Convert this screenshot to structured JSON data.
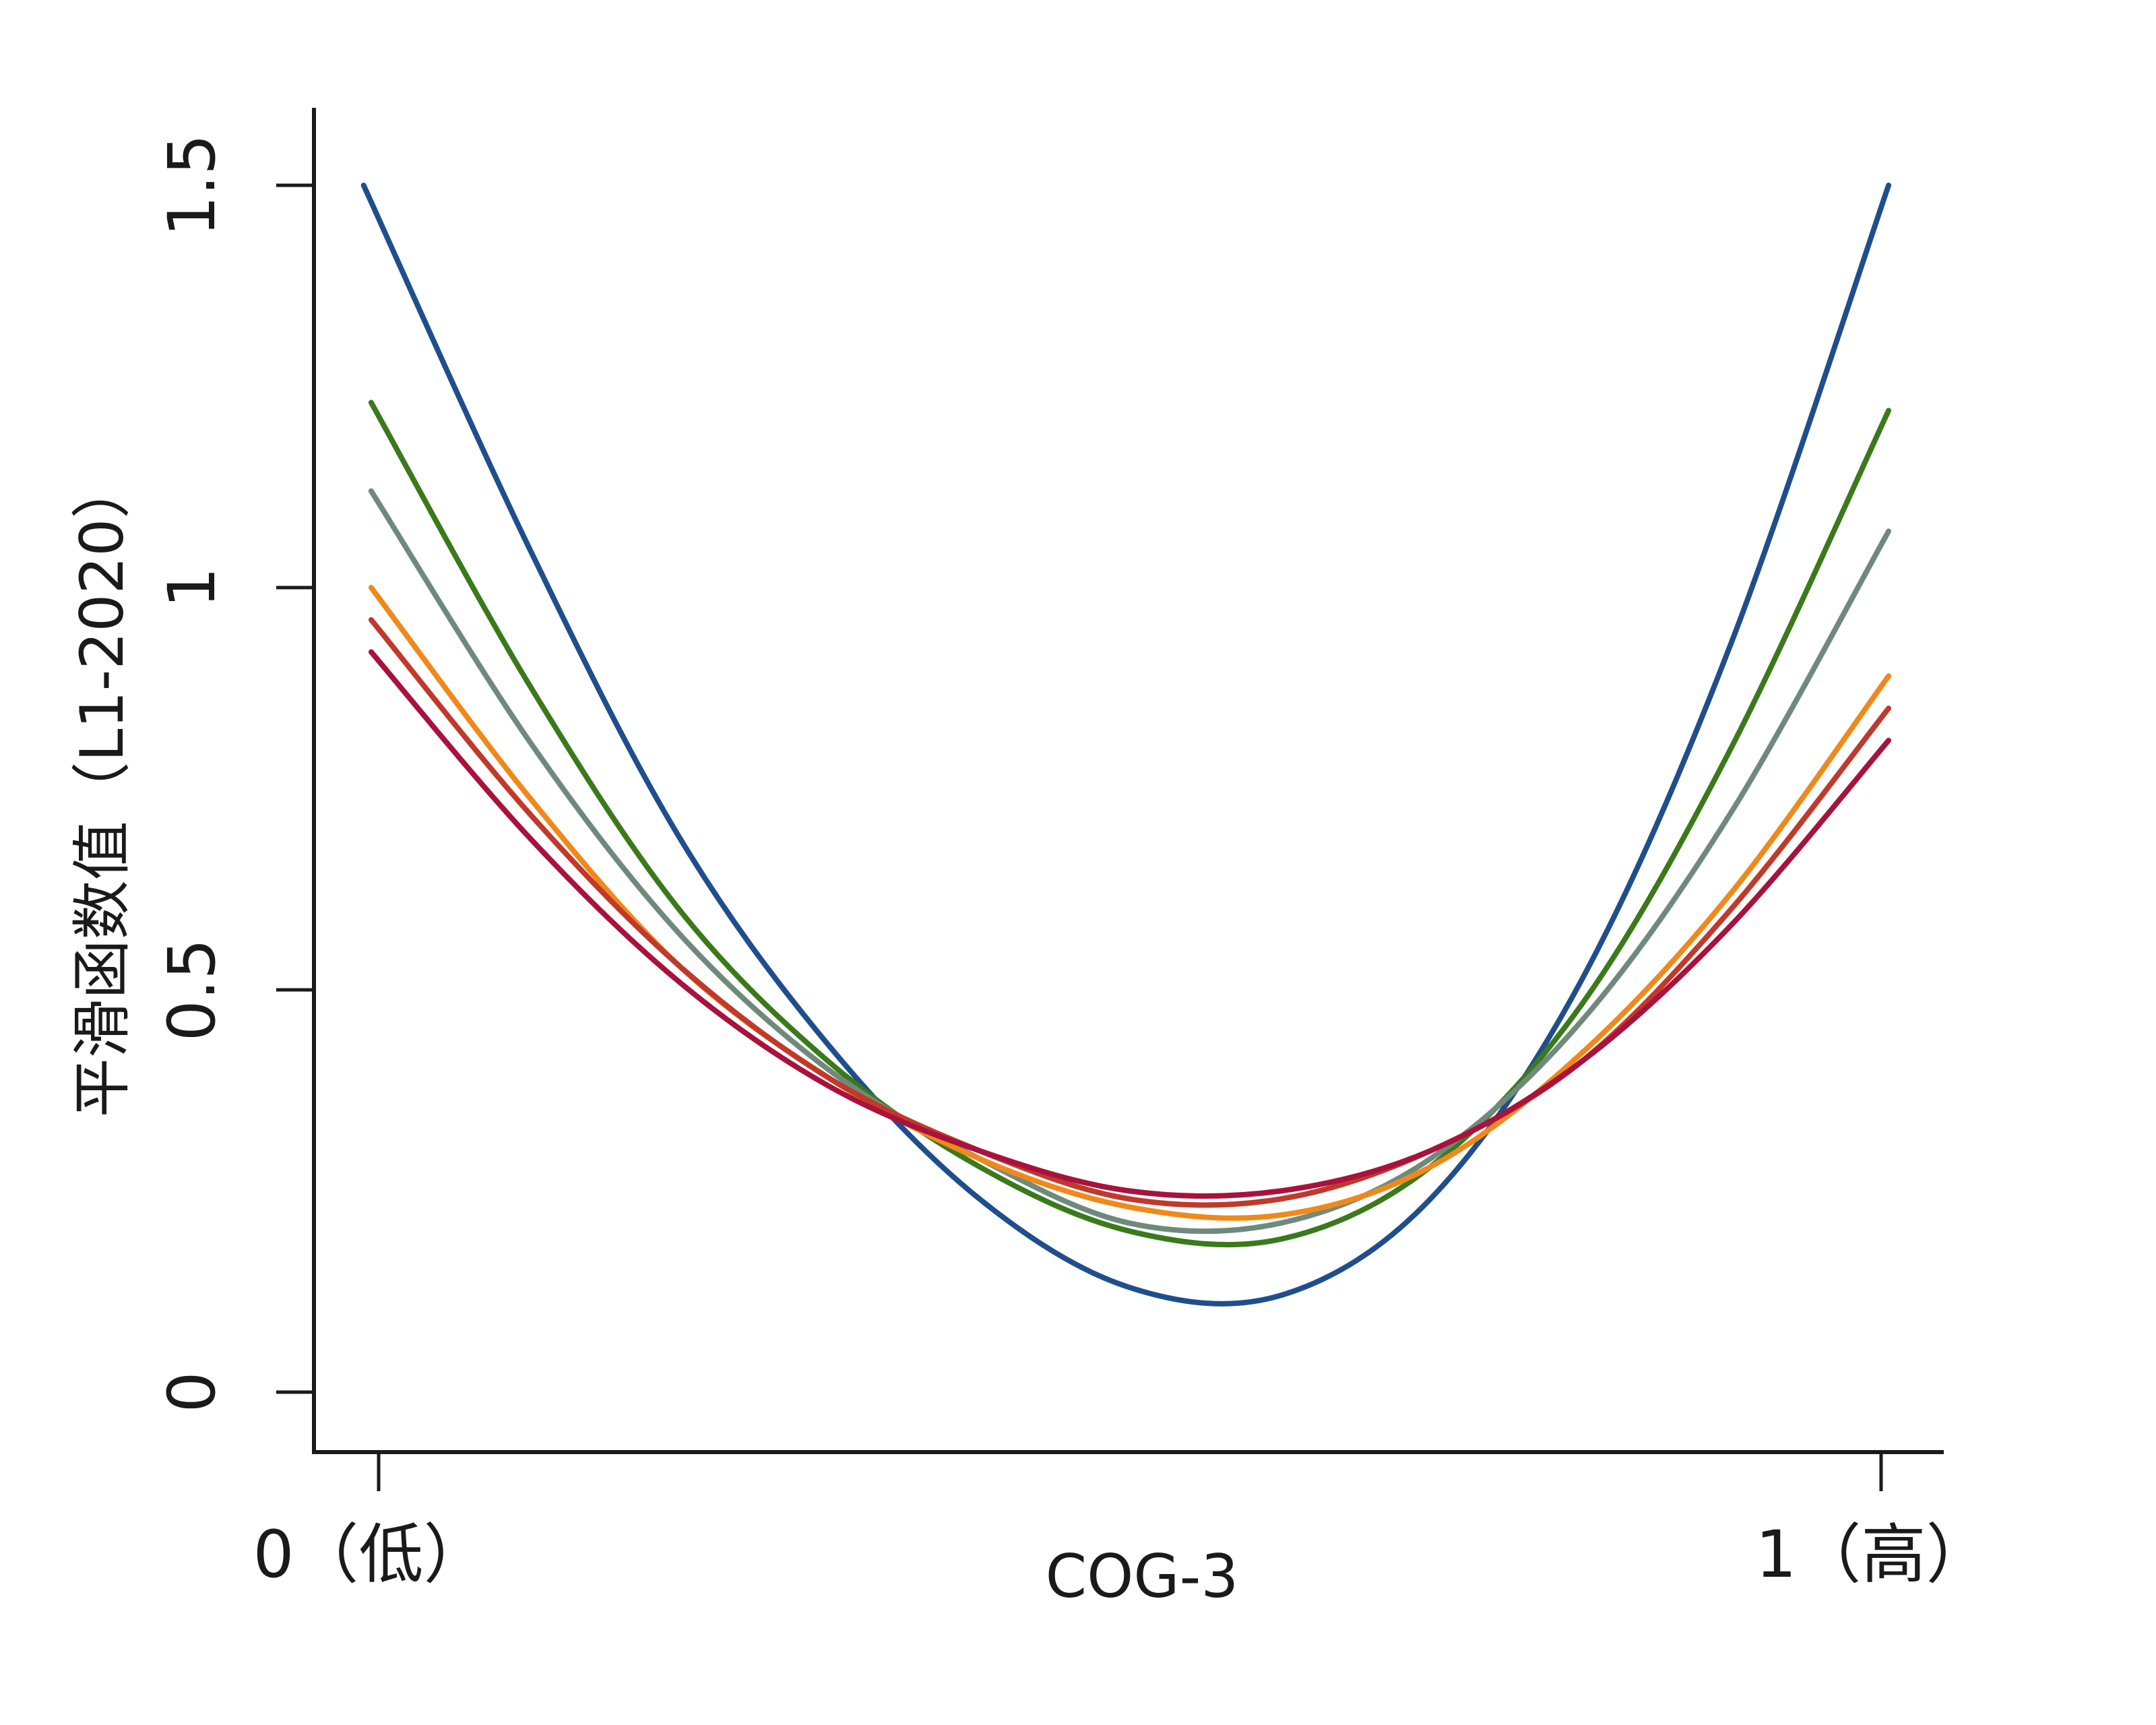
{
  "chart_data": {
    "type": "line",
    "title": "",
    "xlabel": "COG-3",
    "ylabel": "平滑函数值（L1-2020）",
    "xlim": [
      0,
      1
    ],
    "ylim": [
      0,
      1.5
    ],
    "x_ticks": [
      {
        "value": 0,
        "label": "0（低）"
      },
      {
        "value": 1,
        "label": "1（高）"
      }
    ],
    "y_ticks": [
      {
        "value": 0,
        "label": "0"
      },
      {
        "value": 0.5,
        "label": "0.5"
      },
      {
        "value": 1,
        "label": "1"
      },
      {
        "value": 1.5,
        "label": "1.5"
      }
    ],
    "grid": false,
    "legend": "none",
    "series": [
      {
        "color": "#1f4e8c",
        "x": [
          -0.01,
          0.1,
          0.2,
          0.3,
          0.4,
          0.5,
          0.6,
          0.7,
          0.8,
          0.9,
          1.005
        ],
        "y": [
          1.5,
          1.05,
          0.69,
          0.43,
          0.24,
          0.13,
          0.12,
          0.24,
          0.51,
          0.93,
          1.5
        ]
      },
      {
        "color": "#3a7a1a",
        "x": [
          -0.005,
          0.1,
          0.2,
          0.3,
          0.4,
          0.5,
          0.6,
          0.7,
          0.8,
          0.9,
          1.005
        ],
        "y": [
          1.23,
          0.88,
          0.6,
          0.41,
          0.28,
          0.2,
          0.19,
          0.28,
          0.48,
          0.8,
          1.22
        ]
      },
      {
        "color": "#6f8a7c",
        "x": [
          -0.005,
          0.1,
          0.2,
          0.3,
          0.4,
          0.5,
          0.6,
          0.7,
          0.8,
          0.9,
          1.005
        ],
        "y": [
          1.12,
          0.81,
          0.57,
          0.4,
          0.29,
          0.21,
          0.21,
          0.29,
          0.46,
          0.72,
          1.07
        ]
      },
      {
        "color": "#f0891a",
        "x": [
          -0.005,
          0.1,
          0.2,
          0.3,
          0.4,
          0.5,
          0.6,
          0.7,
          0.8,
          0.9,
          1.005
        ],
        "y": [
          1.0,
          0.74,
          0.53,
          0.39,
          0.29,
          0.23,
          0.22,
          0.28,
          0.42,
          0.62,
          0.89
        ]
      },
      {
        "color": "#c0392b",
        "x": [
          -0.005,
          0.1,
          0.2,
          0.3,
          0.4,
          0.5,
          0.6,
          0.7,
          0.8,
          0.9,
          1.005
        ],
        "y": [
          0.96,
          0.72,
          0.53,
          0.39,
          0.3,
          0.24,
          0.24,
          0.3,
          0.41,
          0.6,
          0.85
        ]
      },
      {
        "color": "#a8123c",
        "x": [
          -0.005,
          0.1,
          0.2,
          0.3,
          0.4,
          0.5,
          0.6,
          0.7,
          0.8,
          0.9,
          1.005
        ],
        "y": [
          0.92,
          0.69,
          0.51,
          0.38,
          0.3,
          0.25,
          0.25,
          0.3,
          0.41,
          0.58,
          0.81
        ]
      }
    ]
  }
}
